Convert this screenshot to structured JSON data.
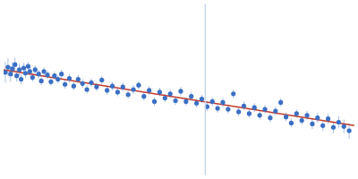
{
  "chart_data": {
    "type": "scatter",
    "tick_labels": false,
    "grid": false,
    "xlim": [
      0,
      400
    ],
    "ylim": [
      0,
      200
    ],
    "series": [
      {
        "type": "line",
        "color": "#c8d4e8",
        "x": [
          230,
          230
        ],
        "values": [
          0,
          200
        ]
      },
      {
        "type": "scatter",
        "color": "#3a6fc4",
        "marker": "circle",
        "error_color": "#a8c0e4",
        "x": [
          2,
          5,
          8,
          10,
          13,
          15,
          18,
          20,
          23,
          25,
          28,
          30,
          33,
          36,
          40,
          43,
          46,
          50,
          54,
          58,
          62,
          66,
          70,
          75,
          80,
          85,
          90,
          95,
          100,
          106,
          112,
          118,
          124,
          130,
          136,
          142,
          148,
          154,
          160,
          166,
          172,
          178,
          184,
          190,
          196,
          202,
          208,
          214,
          220,
          226,
          232,
          238,
          244,
          250,
          256,
          262,
          268,
          274,
          280,
          286,
          292,
          298,
          304,
          310,
          316,
          322,
          328,
          334,
          340,
          346,
          352,
          358,
          364,
          370,
          376,
          382,
          388,
          394
        ],
        "values": [
          120,
          126,
          118,
          124,
          129,
          116,
          123,
          112,
          125,
          119,
          127,
          121,
          114,
          123,
          118,
          110,
          121,
          117,
          109,
          116,
          112,
          118,
          106,
          113,
          104,
          112,
          107,
          100,
          108,
          103,
          111,
          99,
          104,
          97,
          103,
          94,
          100,
          105,
          92,
          99,
          86,
          97,
          90,
          95,
          87,
          98,
          86,
          92,
          84,
          89,
          80,
          86,
          78,
          85,
          77,
          95,
          74,
          81,
          72,
          79,
          70,
          77,
          67,
          75,
          85,
          68,
          61,
          72,
          64,
          70,
          60,
          67,
          58,
          66,
          56,
          62,
          57,
          52
        ],
        "errors": [
          12,
          10,
          9,
          8,
          8,
          7,
          7,
          6,
          6,
          6,
          5,
          5,
          5,
          5,
          5,
          5,
          5,
          5,
          5,
          5,
          5,
          5,
          5,
          5,
          5,
          5,
          5,
          5,
          5,
          5,
          5,
          5,
          5,
          5,
          5,
          5,
          5,
          5,
          5,
          5,
          5,
          5,
          5,
          5,
          5,
          5,
          5,
          5,
          5,
          5,
          5,
          5,
          5,
          5,
          5,
          5,
          5,
          5,
          5,
          5,
          5,
          5,
          5,
          5,
          5,
          5,
          5,
          5,
          5,
          5,
          6,
          6,
          6,
          6,
          7,
          7,
          8,
          9
        ]
      },
      {
        "type": "line",
        "color": "#c0392b",
        "x": [
          0,
          400
        ],
        "values": [
          123,
          58
        ]
      }
    ]
  }
}
